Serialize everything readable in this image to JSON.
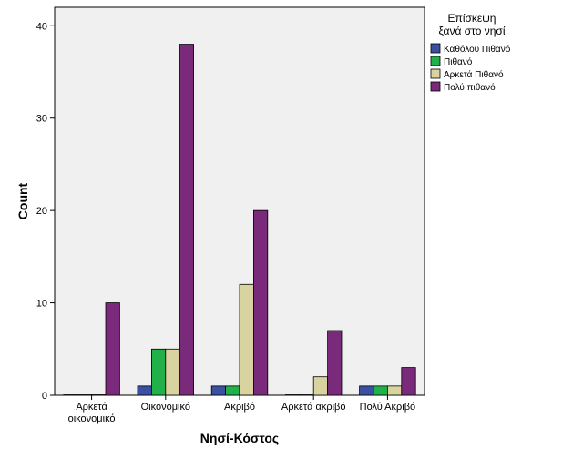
{
  "chart_data": {
    "type": "bar",
    "xlabel": "Νησί-Κόστος",
    "ylabel": "Count",
    "ylim": [
      0,
      42
    ],
    "yticks": [
      0,
      10,
      20,
      30,
      40
    ],
    "grid": false,
    "legend_position": "right",
    "legend_title": [
      "Επίσκεψη",
      "ξανά στο νησί"
    ],
    "categories": [
      [
        "Αρκετά",
        "οικονομικό"
      ],
      [
        "Οικονομικό"
      ],
      [
        "Ακριβό"
      ],
      [
        "Αρκετά ακριβό"
      ],
      [
        "Πολύ Ακριβό"
      ]
    ],
    "series": [
      {
        "name": "Καθόλου Πιθανό",
        "color": "#3b4fa3",
        "values": [
          0,
          1,
          1,
          0,
          1
        ]
      },
      {
        "name": "Πιθανό",
        "color": "#22b04a",
        "values": [
          0,
          5,
          1,
          0,
          1
        ]
      },
      {
        "name": "Αρκετά Πιθανό",
        "color": "#d9d3a0",
        "values": [
          0,
          5,
          12,
          2,
          1
        ]
      },
      {
        "name": "Πολύ πιθανό",
        "color": "#7a2a7a",
        "values": [
          10,
          38,
          20,
          7,
          3
        ]
      }
    ],
    "plot_background": "#f0f0f0"
  }
}
